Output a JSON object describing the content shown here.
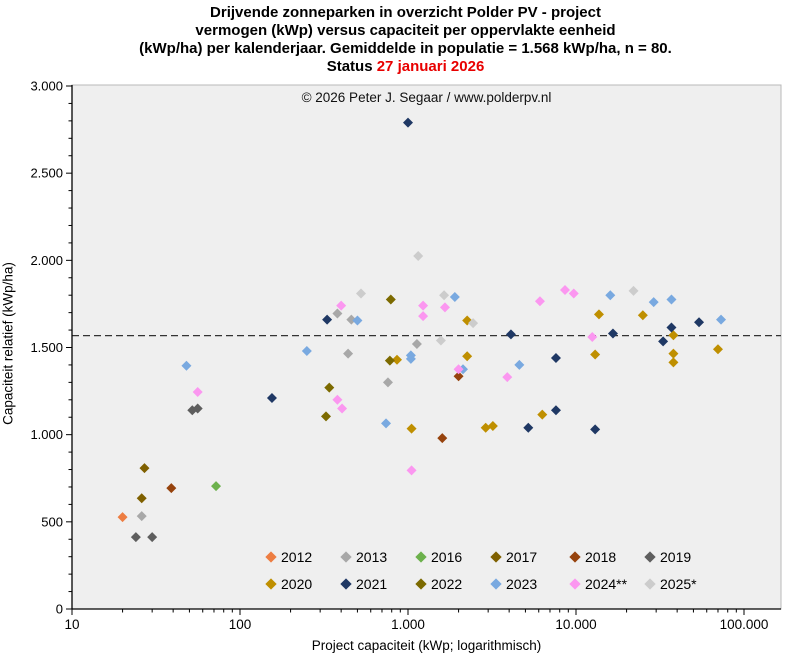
{
  "title": {
    "line1": "Drijvende zonneparken in overzicht Polder PV - project",
    "line2": "vermogen (kWp) versus capaciteit per oppervlakte eenheid",
    "line3": "(kWp/ha) per kalenderjaar. Gemiddelde in populatie  = 1.568 kWp/ha, n = 80.",
    "status_label": "Status",
    "status_date": "27 januari 2026"
  },
  "copyright": "© 2026 Peter J. Segaar / www.polderpv.nl",
  "chart_data": {
    "type": "scatter",
    "x_axis": {
      "label": "Project capaciteit (kWp;  logarithmisch)",
      "scale": "log",
      "tick_values": [
        10,
        100,
        1000,
        10000,
        100000
      ],
      "tick_labels": [
        "10",
        "100",
        "1.000",
        "10.000",
        "100.000"
      ],
      "range": [
        10,
        166000
      ],
      "minor_ticks": "2-9 per decade"
    },
    "y_axis": {
      "label": "Capaciteit relatief (kWp/ha)",
      "scale": "linear",
      "tick_values": [
        0,
        500,
        1000,
        1500,
        2000,
        2500,
        3000
      ],
      "tick_labels": [
        "0",
        "500",
        "1.000",
        "1.500",
        "2.000",
        "2.500",
        "3.000"
      ],
      "range": [
        0,
        3000
      ],
      "minor_step": 100
    },
    "mean_line": {
      "value": 1568,
      "style": "dashed",
      "color": "#333333",
      "note": "Gemiddelde in populatie = 1.568 kWp/ha"
    },
    "grid": "off",
    "plot_background": "#efefef",
    "series": [
      {
        "label": "2012",
        "color": "#ed7d42",
        "points": [
          [
            20,
            527
          ]
        ]
      },
      {
        "label": "2013",
        "color": "#a8a8a8",
        "points": [
          [
            26,
            533
          ],
          [
            380,
            1695
          ],
          [
            460,
            1660
          ],
          [
            440,
            1465
          ],
          [
            760,
            1300
          ],
          [
            1130,
            1520
          ]
        ]
      },
      {
        "label": "2016",
        "color": "#6cb14c",
        "points": [
          [
            72,
            705
          ]
        ]
      },
      {
        "label": "2017",
        "color": "#7f6000",
        "points": [
          [
            27,
            808
          ],
          [
            26,
            635
          ]
        ]
      },
      {
        "label": "2018",
        "color": "#96430d",
        "points": [
          [
            39,
            693
          ],
          [
            1600,
            980
          ],
          [
            2000,
            1335
          ]
        ]
      },
      {
        "label": "2019",
        "color": "#5e5e5e",
        "points": [
          [
            24,
            412
          ],
          [
            30,
            412
          ],
          [
            52,
            1140
          ],
          [
            56,
            1150
          ]
        ]
      },
      {
        "label": "2020",
        "color": "#bf8f00",
        "points": [
          [
            860,
            1430
          ],
          [
            1050,
            1035
          ],
          [
            2250,
            1655
          ],
          [
            2250,
            1450
          ],
          [
            2900,
            1040
          ],
          [
            3200,
            1050
          ],
          [
            6300,
            1115
          ],
          [
            13000,
            1460
          ],
          [
            13700,
            1690
          ],
          [
            25000,
            1685
          ],
          [
            38000,
            1570
          ],
          [
            38000,
            1465
          ],
          [
            38000,
            1415
          ],
          [
            70000,
            1490
          ]
        ]
      },
      {
        "label": "2021",
        "color": "#1f3864",
        "points": [
          [
            155,
            1210
          ],
          [
            330,
            1660
          ],
          [
            1000,
            2790
          ],
          [
            4100,
            1575
          ],
          [
            5200,
            1040
          ],
          [
            7600,
            1440
          ],
          [
            7600,
            1140
          ],
          [
            13000,
            1030
          ],
          [
            16600,
            1580
          ],
          [
            33000,
            1535
          ],
          [
            37000,
            1615
          ],
          [
            54000,
            1645
          ]
        ]
      },
      {
        "label": "2022",
        "color": "#7c6a00",
        "points": [
          [
            325,
            1105
          ],
          [
            340,
            1270
          ],
          [
            780,
            1425
          ],
          [
            790,
            1775
          ]
        ]
      },
      {
        "label": "2023",
        "color": "#79a9e0",
        "points": [
          [
            48,
            1395
          ],
          [
            250,
            1480
          ],
          [
            500,
            1655
          ],
          [
            740,
            1065
          ],
          [
            1040,
            1435
          ],
          [
            1040,
            1455
          ],
          [
            1900,
            1790
          ],
          [
            2125,
            1375
          ],
          [
            4600,
            1400
          ],
          [
            16000,
            1800
          ],
          [
            29000,
            1760
          ],
          [
            37000,
            1775
          ],
          [
            73000,
            1660
          ]
        ]
      },
      {
        "label": "2024**",
        "color": "#fb97f0",
        "points": [
          [
            56,
            1245
          ],
          [
            380,
            1200
          ],
          [
            400,
            1740
          ],
          [
            405,
            1150
          ],
          [
            1050,
            795
          ],
          [
            1230,
            1680
          ],
          [
            1230,
            1740
          ],
          [
            1660,
            1730
          ],
          [
            2000,
            1375
          ],
          [
            3900,
            1330
          ],
          [
            6100,
            1765
          ],
          [
            8600,
            1830
          ],
          [
            9700,
            1810
          ],
          [
            12500,
            1560
          ]
        ]
      },
      {
        "label": "2025*",
        "color": "#cccccc",
        "points": [
          [
            525,
            1810
          ],
          [
            1150,
            2025
          ],
          [
            1570,
            1540
          ],
          [
            1640,
            1800
          ],
          [
            2440,
            1640
          ],
          [
            22000,
            1825
          ]
        ]
      }
    ]
  },
  "legend": {
    "rows": [
      [
        "2012",
        "2013",
        "2016",
        "2017",
        "2018",
        "2019"
      ],
      [
        "2020",
        "2021",
        "2022",
        "2023",
        "2024**",
        "2025*"
      ]
    ]
  }
}
